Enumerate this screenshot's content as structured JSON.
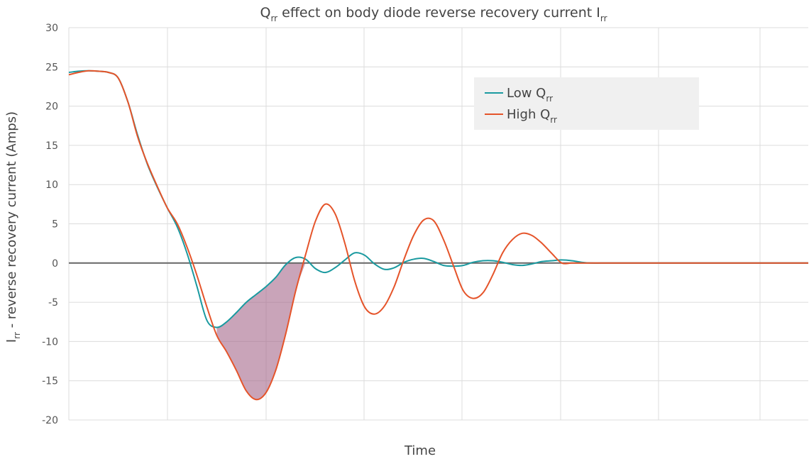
{
  "chart_data": {
    "type": "line",
    "title": {
      "main": "Q",
      "sub1": "rr",
      "rest": " effect on body diode reverse recovery current I",
      "sub2": "rr"
    },
    "xlabel": "Time",
    "ylabel": {
      "main": "I",
      "sub": "rr",
      "rest": " - reverse recovery current (Amps)"
    },
    "ylim": [
      -20,
      30
    ],
    "y_ticks": [
      "30",
      "25",
      "20",
      "15",
      "10",
      "5",
      "0",
      "-5",
      "-10",
      "-15",
      "-20"
    ],
    "grid": true,
    "legend_position": "top-right",
    "legend": [
      {
        "main": "Low Q",
        "sub": "rr"
      },
      {
        "main": "High Q",
        "sub": "rr"
      }
    ],
    "colors": {
      "low": "#1a9aa0",
      "high": "#e5542a",
      "fill": "#a5678b",
      "zero": "#666666",
      "grid": "#dcdcdc",
      "legend_bg": "#f0f0f0"
    },
    "series": [
      {
        "name": "Low Qrr",
        "x": [
          0,
          10,
          20,
          30,
          40,
          50,
          60,
          70,
          80,
          90,
          100,
          110,
          120,
          130,
          140,
          150,
          160,
          170,
          180,
          190,
          200,
          210,
          220,
          230,
          240,
          250,
          260,
          270,
          280,
          290,
          300,
          310,
          320,
          330,
          340,
          350,
          360,
          370,
          380,
          390,
          400,
          410,
          420,
          430,
          440,
          450,
          460,
          470,
          480,
          490,
          500,
          510,
          520,
          530,
          540,
          550,
          560,
          570,
          580,
          590,
          600,
          610,
          620,
          630,
          640,
          650,
          660,
          670,
          680,
          690,
          700,
          710,
          720,
          730,
          740,
          750
        ],
        "y": [
          24.3,
          24.45,
          24.5,
          24.45,
          24.3,
          23.6,
          20.5,
          16.2,
          12.5,
          9.6,
          7.0,
          4.6,
          1.2,
          -3.0,
          -7.3,
          -8.2,
          -7.5,
          -6.3,
          -5.0,
          -4.0,
          -3.0,
          -1.8,
          -0.2,
          0.7,
          0.5,
          -0.7,
          -1.2,
          -0.6,
          0.4,
          1.3,
          1.0,
          -0.1,
          -0.8,
          -0.6,
          0.1,
          0.5,
          0.6,
          0.2,
          -0.3,
          -0.4,
          -0.3,
          0.1,
          0.3,
          0.3,
          0.1,
          -0.2,
          -0.3,
          -0.1,
          0.2,
          0.3,
          0.4,
          0.3,
          0.1,
          0,
          0,
          0,
          0,
          0,
          0,
          0,
          0,
          0,
          0,
          0,
          0,
          0,
          0,
          0,
          0,
          0,
          0,
          0,
          0,
          0,
          0,
          0
        ]
      },
      {
        "name": "High Qrr",
        "x": [
          0,
          10,
          20,
          30,
          40,
          50,
          60,
          70,
          80,
          90,
          100,
          110,
          120,
          130,
          140,
          150,
          160,
          170,
          180,
          190,
          200,
          210,
          220,
          230,
          240,
          250,
          260,
          270,
          280,
          290,
          300,
          310,
          320,
          330,
          340,
          350,
          360,
          370,
          380,
          390,
          400,
          410,
          420,
          430,
          440,
          450,
          460,
          470,
          480,
          490,
          500,
          510,
          520,
          530,
          540,
          550,
          560,
          570,
          580,
          590,
          600,
          610,
          620,
          630,
          640,
          650,
          660,
          670,
          680,
          690,
          700,
          710,
          720,
          730,
          740,
          750
        ],
        "y": [
          24.0,
          24.3,
          24.5,
          24.45,
          24.3,
          23.6,
          20.5,
          16.0,
          12.6,
          9.7,
          7.0,
          5.0,
          2.0,
          -1.6,
          -5.6,
          -9.2,
          -11.3,
          -13.7,
          -16.3,
          -17.4,
          -16.5,
          -13.6,
          -9.0,
          -3.6,
          1.0,
          5.3,
          7.5,
          6.3,
          2.5,
          -2.3,
          -5.6,
          -6.5,
          -5.5,
          -3.0,
          0.5,
          3.6,
          5.5,
          5.4,
          3.0,
          -0.3,
          -3.5,
          -4.5,
          -3.8,
          -1.5,
          1.3,
          3.0,
          3.8,
          3.5,
          2.5,
          1.2,
          0,
          0,
          0,
          0,
          0,
          0,
          0,
          0,
          0,
          0,
          0,
          0,
          0,
          0,
          0,
          0,
          0,
          0,
          0,
          0,
          0,
          0,
          0,
          0,
          0,
          0
        ]
      }
    ]
  }
}
